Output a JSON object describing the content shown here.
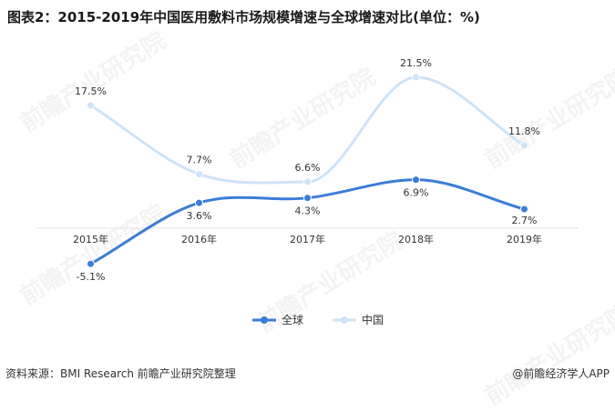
{
  "title": "图表2：2015-2019年中国医用敷料市场规模增速与全球增速对比(单位：%)",
  "watermark": "前瞻产业研究院",
  "source": "资料来源：BMI Research 前瞻产业研究院整理",
  "brand": "@前瞻经济学人APP",
  "chart_data": {
    "type": "line",
    "title": "图表2：2015-2019年中国医用敷料市场规模增速与全球增速对比(单位：%)",
    "categories": [
      "2015年",
      "2016年",
      "2017年",
      "2018年",
      "2019年"
    ],
    "series": [
      {
        "name": "全球",
        "color": "#3b7dd8",
        "values": [
          -5.1,
          3.6,
          4.3,
          6.9,
          2.7
        ],
        "labels": [
          "-5.1%",
          "3.6%",
          "4.3%",
          "6.9%",
          "2.7%"
        ]
      },
      {
        "name": "中国",
        "color": "#cfe3f7",
        "values": [
          17.5,
          7.7,
          6.6,
          21.5,
          11.8
        ],
        "labels": [
          "17.5%",
          "7.7%",
          "6.6%",
          "21.5%",
          "11.8%"
        ]
      }
    ],
    "ylim": [
      -10,
      25
    ],
    "smooth": true,
    "grid": false,
    "legend": "bottom-center"
  }
}
